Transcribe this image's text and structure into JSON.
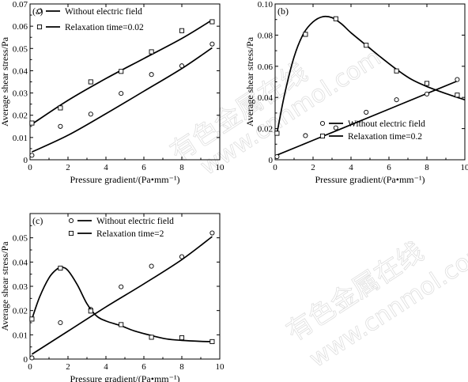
{
  "watermark": {
    "cn": "有色金属在线",
    "url": "www.cnnmol.com"
  },
  "chart_data": [
    {
      "type": "scatter",
      "panel_label": "(a)",
      "xlabel": "Pressure gradient/(Pa•mm⁻¹)",
      "ylabel": "Average shear stress/Pa",
      "xlim": [
        0,
        10
      ],
      "ylim": [
        0,
        0.07
      ],
      "xticks": [
        "0",
        "2",
        "4",
        "6",
        "8",
        "10"
      ],
      "xticks_minor": [
        "1",
        "3",
        "5",
        "7",
        "9"
      ],
      "yticks": [
        "0",
        "0.01",
        "0.02",
        "0.03",
        "0.04",
        "0.05",
        "0.06",
        "0.07"
      ],
      "legend_position": "top-left",
      "grid": false,
      "series": [
        {
          "name": "Without electric field",
          "marker": "circle",
          "points": [
            [
              0.1,
              0.002
            ],
            [
              1.6,
              0.015
            ],
            [
              3.2,
              0.0205
            ],
            [
              4.8,
              0.0298
            ],
            [
              6.4,
              0.0383
            ],
            [
              8.0,
              0.0422
            ],
            [
              9.6,
              0.052
            ]
          ],
          "fit": [
            [
              0.1,
              0.0035
            ],
            [
              2,
              0.011
            ],
            [
              4,
              0.0207
            ],
            [
              6,
              0.0308
            ],
            [
              8,
              0.041
            ],
            [
              9.6,
              0.0503
            ]
          ]
        },
        {
          "name": "Relaxation time=0.02",
          "marker": "square",
          "points": [
            [
              0.1,
              0.0165
            ],
            [
              1.6,
              0.0233
            ],
            [
              3.2,
              0.035
            ],
            [
              4.8,
              0.0397
            ],
            [
              6.4,
              0.0485
            ],
            [
              8.0,
              0.058
            ],
            [
              9.6,
              0.062
            ]
          ],
          "fit": [
            [
              0.1,
              0.016
            ],
            [
              2,
              0.0267
            ],
            [
              4,
              0.0365
            ],
            [
              6,
              0.0455
            ],
            [
              8,
              0.0545
            ],
            [
              9.6,
              0.0628
            ]
          ]
        }
      ]
    },
    {
      "type": "scatter",
      "panel_label": "(b)",
      "xlabel": "Pressure gradient/(Pa•mm⁻¹)",
      "ylabel": "Average shear stress/Pa",
      "xlim": [
        0,
        10
      ],
      "ylim": [
        0,
        0.1
      ],
      "xticks": [
        "0",
        "2",
        "4",
        "6",
        "8",
        "10"
      ],
      "xticks_minor": [
        "1",
        "3",
        "5",
        "7",
        "9"
      ],
      "yticks": [
        "0",
        "0.02",
        "0.04",
        "0.06",
        "0.08",
        "0.10"
      ],
      "legend_position": "bottom-center",
      "grid": false,
      "series": [
        {
          "name": "Without electric field",
          "marker": "circle",
          "points": [
            [
              0.1,
              0.002
            ],
            [
              1.6,
              0.0155
            ],
            [
              3.2,
              0.0205
            ],
            [
              4.8,
              0.0305
            ],
            [
              6.4,
              0.0385
            ],
            [
              8.0,
              0.0422
            ],
            [
              9.6,
              0.0515
            ]
          ],
          "fit": [
            [
              0.1,
              0.003
            ],
            [
              2,
              0.0125
            ],
            [
              4,
              0.0225
            ],
            [
              6,
              0.0325
            ],
            [
              8,
              0.0425
            ],
            [
              9.6,
              0.0505
            ]
          ]
        },
        {
          "name": "Relaxation time=0.2",
          "marker": "square",
          "points": [
            [
              0.1,
              0.017
            ],
            [
              1.6,
              0.0805
            ],
            [
              3.2,
              0.0905
            ],
            [
              4.8,
              0.0735
            ],
            [
              6.4,
              0.057
            ],
            [
              8.0,
              0.049
            ],
            [
              9.6,
              0.0415
            ]
          ],
          "fit": [
            [
              0.1,
              0.017
            ],
            [
              0.5,
              0.042
            ],
            [
              1.0,
              0.066
            ],
            [
              1.5,
              0.081
            ],
            [
              2.0,
              0.0885
            ],
            [
              2.5,
              0.0918
            ],
            [
              3.0,
              0.0912
            ],
            [
              3.5,
              0.0872
            ],
            [
              4.0,
              0.0815
            ],
            [
              4.8,
              0.0735
            ],
            [
              5.5,
              0.0665
            ],
            [
              6.4,
              0.058
            ],
            [
              7.2,
              0.0515
            ],
            [
              8.0,
              0.047
            ],
            [
              9.0,
              0.0425
            ],
            [
              10.0,
              0.0385
            ]
          ]
        }
      ]
    },
    {
      "type": "scatter",
      "panel_label": "(c)",
      "xlabel": "Pressure gradient/(Pa•mm⁻¹)",
      "ylabel": "Average shear stress/Pa",
      "xlim": [
        0,
        10
      ],
      "ylim": [
        0,
        0.06
      ],
      "xticks": [
        "0",
        "2",
        "4",
        "6",
        "8",
        "10"
      ],
      "xticks_minor": [
        "1",
        "3",
        "5",
        "7",
        "9"
      ],
      "yticks": [
        "0",
        "0.01",
        "0.02",
        "0.03",
        "0.04",
        "0.05"
      ],
      "legend_position": "top-center",
      "grid": false,
      "series": [
        {
          "name": "Without electric field",
          "marker": "circle",
          "points": [
            [
              0.1,
              0.0005
            ],
            [
              1.6,
              0.015
            ],
            [
              3.2,
              0.0205
            ],
            [
              4.8,
              0.0298
            ],
            [
              6.4,
              0.0383
            ],
            [
              8.0,
              0.0422
            ],
            [
              9.6,
              0.052
            ]
          ],
          "fit": [
            [
              0.1,
              0.002
            ],
            [
              2,
              0.0115
            ],
            [
              4,
              0.0215
            ],
            [
              6,
              0.031
            ],
            [
              8,
              0.041
            ],
            [
              9.6,
              0.0505
            ]
          ]
        },
        {
          "name": "Relaxation time=2",
          "marker": "square",
          "points": [
            [
              0.1,
              0.0165
            ],
            [
              1.6,
              0.0375
            ],
            [
              3.2,
              0.0198
            ],
            [
              4.8,
              0.0142
            ],
            [
              6.4,
              0.009
            ],
            [
              8.0,
              0.0088
            ],
            [
              9.6,
              0.0072
            ]
          ],
          "fit": [
            [
              0.1,
              0.0165
            ],
            [
              0.5,
              0.0255
            ],
            [
              1.0,
              0.0335
            ],
            [
              1.4,
              0.037
            ],
            [
              1.7,
              0.0378
            ],
            [
              2.0,
              0.0365
            ],
            [
              2.5,
              0.0305
            ],
            [
              3.0,
              0.0228
            ],
            [
              3.5,
              0.0178
            ],
            [
              4.0,
              0.0157
            ],
            [
              4.8,
              0.0137
            ],
            [
              5.5,
              0.0116
            ],
            [
              6.4,
              0.0097
            ],
            [
              7.2,
              0.0083
            ],
            [
              8.0,
              0.0077
            ],
            [
              9.0,
              0.0073
            ],
            [
              9.6,
              0.0072
            ]
          ]
        }
      ]
    }
  ]
}
